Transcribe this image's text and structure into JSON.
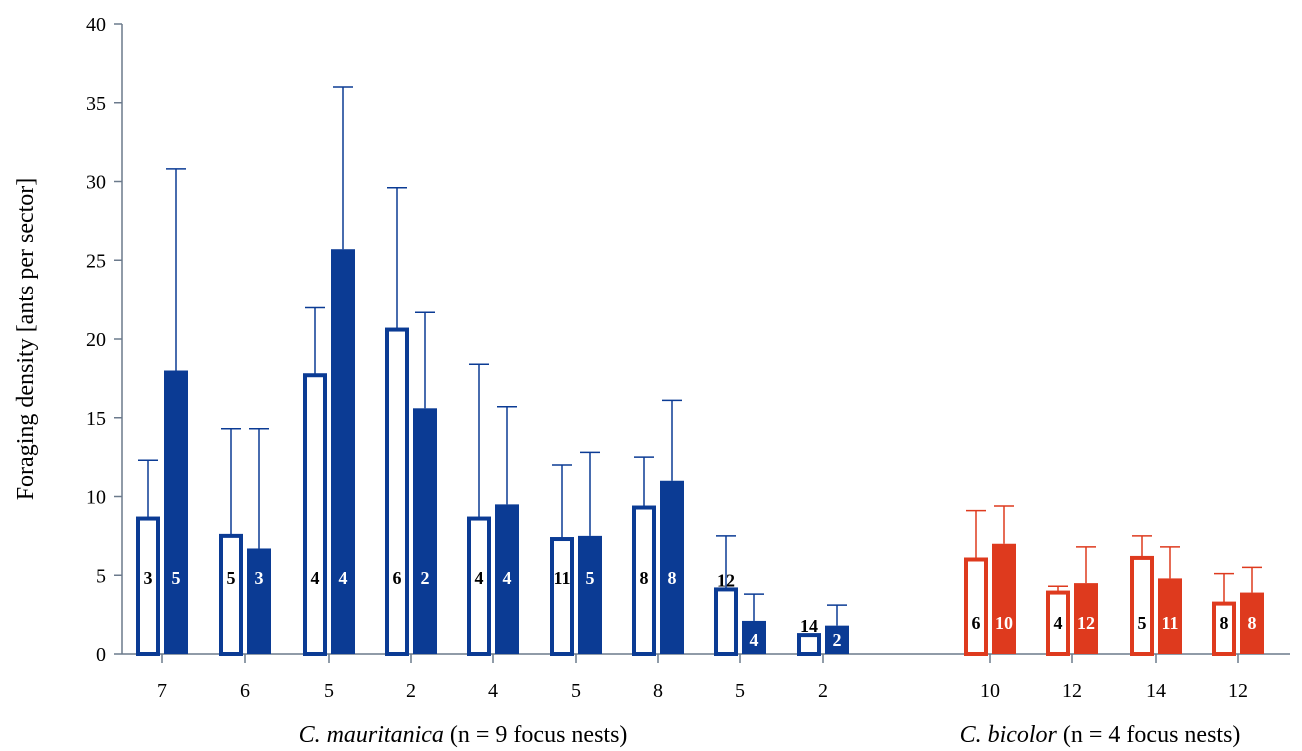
{
  "chart_data": {
    "type": "bar",
    "ylabel": "Foraging density [ants per sector]",
    "ylim": [
      0,
      40
    ],
    "yticks": [
      0,
      5,
      10,
      15,
      20,
      25,
      30,
      35,
      40
    ],
    "grid": false,
    "colors": {
      "mauritanica": "#0b3b94",
      "bicolor": "#de3a1e"
    },
    "groups": [
      {
        "species": "C. mauritanica",
        "suffix": "(n = 9 focus nests)",
        "color_key": "mauritanica",
        "nests": [
          {
            "xlabel": "7",
            "open": {
              "value": 8.6,
              "error_top": 12.3,
              "n": "3"
            },
            "filled": {
              "value": 18.0,
              "error_top": 30.8,
              "n": "5"
            }
          },
          {
            "xlabel": "6",
            "open": {
              "value": 7.5,
              "error_top": 14.3,
              "n": "5"
            },
            "filled": {
              "value": 6.7,
              "error_top": 14.3,
              "n": "3"
            }
          },
          {
            "xlabel": "5",
            "open": {
              "value": 17.7,
              "error_top": 22.0,
              "n": "4"
            },
            "filled": {
              "value": 25.7,
              "error_top": 36.0,
              "n": "4"
            }
          },
          {
            "xlabel": "2",
            "open": {
              "value": 20.6,
              "error_top": 29.6,
              "n": "6"
            },
            "filled": {
              "value": 15.6,
              "error_top": 21.7,
              "n": "2"
            }
          },
          {
            "xlabel": "4",
            "open": {
              "value": 8.6,
              "error_top": 18.4,
              "n": "4"
            },
            "filled": {
              "value": 9.5,
              "error_top": 15.7,
              "n": "4"
            }
          },
          {
            "xlabel": "5",
            "open": {
              "value": 7.3,
              "error_top": 12.0,
              "n": "11"
            },
            "filled": {
              "value": 7.5,
              "error_top": 12.8,
              "n": "5"
            }
          },
          {
            "xlabel": "8",
            "open": {
              "value": 9.3,
              "error_top": 12.5,
              "n": "8"
            },
            "filled": {
              "value": 11.0,
              "error_top": 16.1,
              "n": "8"
            }
          },
          {
            "xlabel": "5",
            "open": {
              "value": 4.1,
              "error_top": 7.5,
              "n": "12"
            },
            "filled": {
              "value": 2.1,
              "error_top": 3.8,
              "n": "4"
            }
          },
          {
            "xlabel": "2",
            "open": {
              "value": 1.2,
              "error_top": 1.2,
              "n": "14"
            },
            "filled": {
              "value": 1.8,
              "error_top": 3.1,
              "n": "2"
            }
          }
        ]
      },
      {
        "species": "C. bicolor",
        "suffix": "(n = 4 focus nests)",
        "color_key": "bicolor",
        "nests": [
          {
            "xlabel": "10",
            "open": {
              "value": 6.0,
              "error_top": 9.1,
              "n": "6"
            },
            "filled": {
              "value": 7.0,
              "error_top": 9.4,
              "n": "10"
            }
          },
          {
            "xlabel": "12",
            "open": {
              "value": 3.9,
              "error_top": 4.3,
              "n": "4"
            },
            "filled": {
              "value": 4.5,
              "error_top": 6.8,
              "n": "12"
            }
          },
          {
            "xlabel": "14",
            "open": {
              "value": 6.1,
              "error_top": 7.5,
              "n": "5"
            },
            "filled": {
              "value": 4.8,
              "error_top": 6.8,
              "n": "11"
            }
          },
          {
            "xlabel": "12",
            "open": {
              "value": 3.2,
              "error_top": 5.1,
              "n": "8"
            },
            "filled": {
              "value": 3.9,
              "error_top": 5.5,
              "n": "8"
            }
          }
        ]
      }
    ]
  }
}
